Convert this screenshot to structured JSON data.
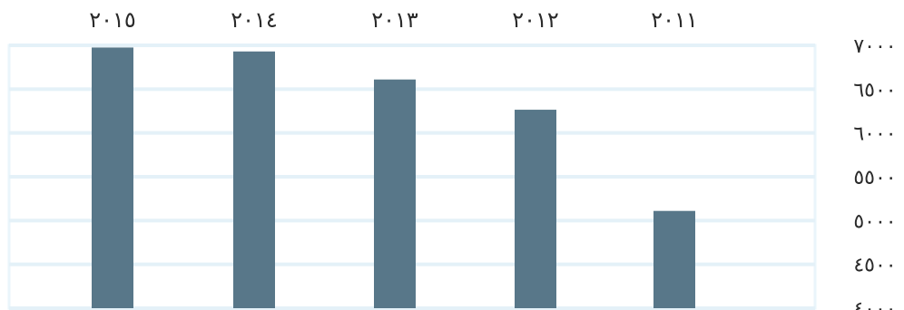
{
  "chart_data": {
    "type": "bar",
    "categories": [
      "٢٠١٥",
      "٢٠١٤",
      "٢٠١٣",
      "٢٠١٢",
      "٢٠١١"
    ],
    "values": [
      6975,
      6930,
      6610,
      6265,
      5110
    ],
    "ylim": [
      4000,
      7000
    ],
    "yticks": [
      7000,
      6500,
      6000,
      5500,
      5000,
      4500,
      4000
    ],
    "ytick_labels": [
      "٧٠٠٠",
      "٦٥٠٠",
      "٦٠٠٠",
      "٥٥٠٠",
      "٥٠٠٠",
      "٤٥٠٠",
      "٤٠٠٠"
    ],
    "title": "",
    "xlabel": "",
    "ylabel": "",
    "grid": true,
    "x_axis_position": "top",
    "y_axis_position": "right",
    "colors": {
      "bar": "#587789",
      "grid": "#e4f1f8",
      "frame": "#eaf5fb"
    }
  }
}
